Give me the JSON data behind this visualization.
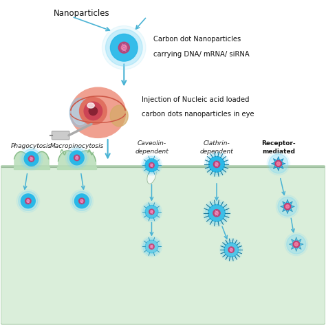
{
  "bg_color": "#ffffff",
  "cell_bg": "#daeeda",
  "cell_border": "#aaccaa",
  "arrow_color": "#3aaSd4",
  "arrow_color2": "#4ab3d4",
  "np_blue": "#29b8e8",
  "np_glow": "#7fd8f5",
  "np_inner": "#cc3366",
  "np_inner2": "#e05080",
  "text_color": "#222222",
  "text_bold_color": "#111111",
  "eye_sclera": "#f0c8b8",
  "eye_iris": "#e87070",
  "eye_pupil": "#993344",
  "needle_color": "#bbbbbb",
  "cell_green": "#b8ddb8",
  "cell_green2": "#88bb88",
  "labels": {
    "nanoparticles": "Nanoparticles",
    "carbon_dot_line1": "Carbon dot Nanoparticles",
    "carbon_dot_line2": "carrying DNA/ mRNA/ siRNA",
    "injection_line1": "Injection of Nucleic acid loaded",
    "injection_line2": "carbon dots nanoparticles in eye",
    "phagocytosis": "Phagocytosis",
    "macropinocytosis": "Macropinocytosis",
    "caveolin_line1": "Caveolin-",
    "caveolin_line2": "dependent",
    "clathrin_line1": "Clathrin-",
    "clathrin_line2": "dependent",
    "receptor_line1": "Receptor-",
    "receptor_line2": "mediated"
  },
  "figsize": [
    4.74,
    4.74
  ],
  "dpi": 100
}
